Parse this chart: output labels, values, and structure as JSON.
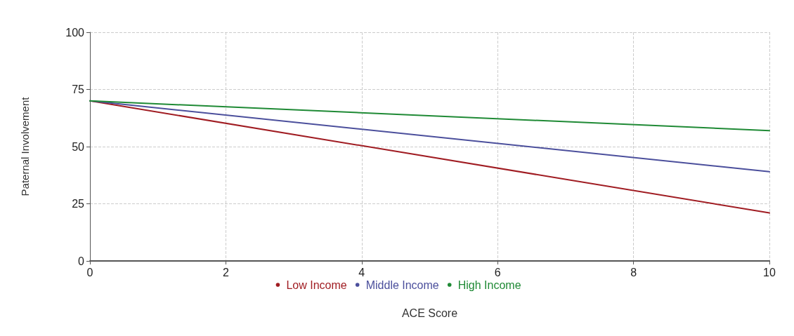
{
  "chart_data": {
    "type": "line",
    "xlabel": "ACE Score",
    "ylabel": "Paternal Involvement",
    "x": [
      0,
      10
    ],
    "series": [
      {
        "name": "Low Income",
        "color": "#a01c22",
        "values": [
          70,
          21
        ]
      },
      {
        "name": "Middle Income",
        "color": "#4b4f9c",
        "values": [
          70,
          39
        ]
      },
      {
        "name": "High Income",
        "color": "#1f8a35",
        "values": [
          70,
          57
        ]
      }
    ],
    "xlim": [
      0,
      10
    ],
    "xticks": [
      0,
      2,
      4,
      6,
      8,
      10
    ],
    "ylim": [
      0,
      100
    ],
    "yticks": [
      0,
      25,
      50,
      75,
      100
    ],
    "grid": true,
    "legend": "bottom",
    "marker": "none",
    "line_style": "solid"
  }
}
